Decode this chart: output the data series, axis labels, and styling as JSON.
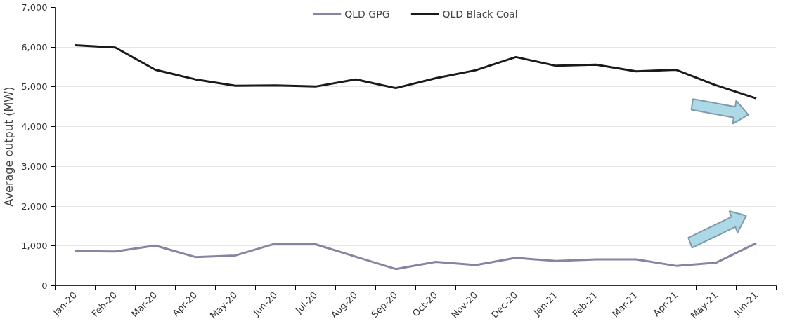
{
  "chart_data": {
    "type": "line",
    "ylabel": "Average output (MW)",
    "categories": [
      "Jan-20",
      "Feb-20",
      "Mar-20",
      "Apr-20",
      "May-20",
      "Jun-20",
      "Jul-20",
      "Aug-20",
      "Sep-20",
      "Oct-20",
      "Nov-20",
      "Dec-20",
      "Jan-21",
      "Feb-21",
      "Mar-21",
      "Apr-21",
      "May-21",
      "Jun-21"
    ],
    "series": [
      {
        "name": "QLD GPG",
        "color": "#8585a3",
        "values": [
          870,
          860,
          1010,
          720,
          760,
          1060,
          1040,
          730,
          420,
          600,
          520,
          700,
          620,
          660,
          660,
          500,
          580,
          1070
        ]
      },
      {
        "name": "QLD Black Coal",
        "color": "#1a1a1a",
        "values": [
          6050,
          5990,
          5430,
          5190,
          5030,
          5040,
          5010,
          5190,
          4970,
          5220,
          5420,
          5750,
          5530,
          5560,
          5390,
          5430,
          5040,
          4710
        ]
      }
    ],
    "ylim": [
      0,
      7000
    ],
    "yticks": [
      {
        "value": 0,
        "label": "0"
      },
      {
        "value": 1000,
        "label": "1,000"
      },
      {
        "value": 2000,
        "label": "2,000"
      },
      {
        "value": 3000,
        "label": "3,000"
      },
      {
        "value": 4000,
        "label": "4,000"
      },
      {
        "value": 5000,
        "label": "5,000"
      },
      {
        "value": 6000,
        "label": "6,000"
      },
      {
        "value": 7000,
        "label": "7,000"
      }
    ],
    "grid": "y",
    "legend": "top",
    "marker": "none",
    "line_style": "solid"
  }
}
